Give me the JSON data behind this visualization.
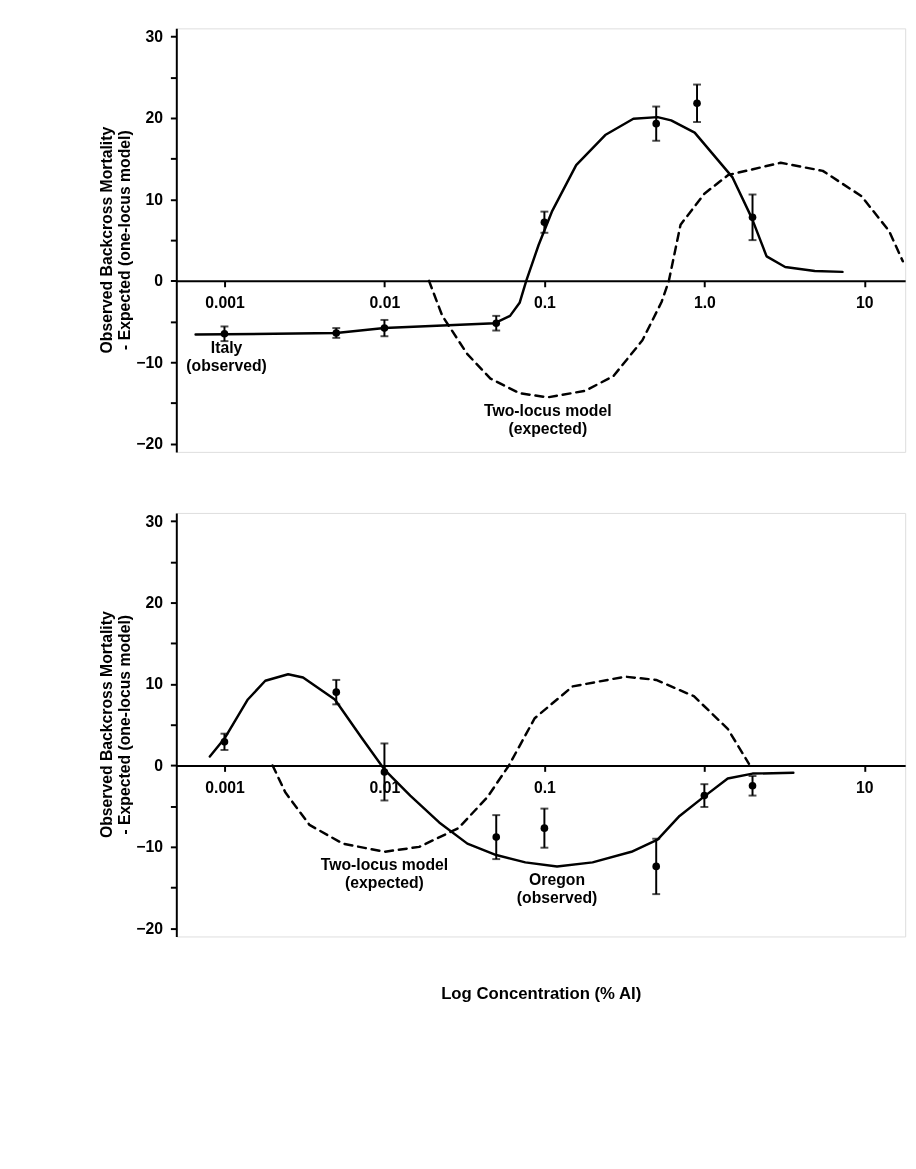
{
  "chart_data": [
    {
      "type": "line",
      "ylabel": "Observed Backcross Mortality\n- Expected (one-locus model)",
      "log": "x",
      "grid": false,
      "xlim": [
        0.0005,
        18
      ],
      "xticks": [
        0.001,
        0.01,
        0.1,
        {
          "value": 1,
          "label": "1.0"
        },
        10
      ],
      "ylim": [
        -21,
        31
      ],
      "yticks": [
        -20,
        {
          "value": -15,
          "label": null
        },
        -10,
        {
          "value": -5,
          "label": null
        },
        0,
        {
          "value": 5,
          "label": null
        },
        10,
        {
          "value": 15,
          "label": null
        },
        20,
        {
          "value": 25,
          "label": null
        },
        30
      ],
      "series": [
        {
          "name": "Italy\n(observed)",
          "color": "#000000",
          "line_style": "solid",
          "x": [
            0.00066,
            0.005,
            0.01,
            0.049,
            0.061,
            0.07,
            0.077,
            0.092,
            0.112,
            0.158,
            0.24,
            0.36,
            0.51,
            0.62,
            0.87,
            1.5,
            1.98,
            2.45,
            3.2,
            4.9,
            7.3
          ],
          "values": [
            -6.6,
            -6.4,
            -5.8,
            -5.2,
            -4.3,
            -2.7,
            0,
            4.4,
            8.6,
            14.2,
            17.9,
            19.9,
            20.1,
            19.7,
            18.2,
            12.7,
            7.7,
            3.0,
            1.7,
            1.2,
            1.1
          ]
        },
        {
          "name": "Two-locus model\n(expected)",
          "color": "#000000",
          "line_style": "dashed",
          "x": [
            0.019,
            0.023,
            0.033,
            0.046,
            0.07,
            0.105,
            0.18,
            0.27,
            0.41,
            0.54,
            0.6,
            0.71,
            1.0,
            1.41,
            3.0,
            5.5,
            9.6,
            14.3,
            17.4
          ],
          "values": [
            0,
            -4.3,
            -9.0,
            -12.0,
            -13.8,
            -14.3,
            -13.5,
            -11.7,
            -7.3,
            -2.6,
            0,
            6.9,
            10.7,
            13.0,
            14.5,
            13.5,
            10.4,
            6.1,
            2.4
          ]
        },
        {
          "type": "scatter",
          "color": "#000000",
          "marker": "circle",
          "x": [
            0.001,
            0.005,
            0.01,
            0.05,
            0.1,
            0.5,
            0.9,
            2
          ],
          "values": [
            -6.5,
            -6.4,
            -5.8,
            -5.2,
            7.2,
            19.3,
            21.8,
            7.8
          ],
          "errors": [
            0.9,
            0.6,
            1.0,
            0.9,
            1.3,
            2.1,
            2.3,
            2.8
          ]
        }
      ]
    },
    {
      "type": "line",
      "ylabel": "Observed Backcross Mortality\n- Expected (one-locus model)",
      "xlabel": "Log Concentration (% AI)",
      "log": "x",
      "grid": false,
      "xlim": [
        0.0005,
        18
      ],
      "xticks": [
        0.001,
        0.01,
        0.1,
        {
          "value": 1,
          "label": null
        },
        10
      ],
      "ylim": [
        -21,
        31
      ],
      "yticks": [
        -20,
        {
          "value": -15,
          "label": null
        },
        -10,
        {
          "value": -5,
          "label": null
        },
        0,
        {
          "value": 5,
          "label": null
        },
        10,
        {
          "value": 15,
          "label": null
        },
        20,
        {
          "value": 25,
          "label": null
        },
        30
      ],
      "series": [
        {
          "name": "Oregon\n(observed)",
          "color": "#000000",
          "line_style": "solid",
          "x": [
            0.00081,
            0.001,
            0.0014,
            0.0018,
            0.0025,
            0.0031,
            0.0049,
            0.0072,
            0.01,
            0.0145,
            0.022,
            0.033,
            0.05,
            0.076,
            0.12,
            0.2,
            0.35,
            0.51,
            0.7,
            1.0,
            1.4,
            2.0,
            3.6
          ],
          "values": [
            1.1,
            3.3,
            8.1,
            10.4,
            11.2,
            10.8,
            8.1,
            3.4,
            -0.5,
            -3.7,
            -7.0,
            -9.6,
            -11.0,
            -11.9,
            -12.4,
            -11.9,
            -10.6,
            -9.1,
            -6.2,
            -3.8,
            -1.6,
            -1.0,
            -0.9
          ]
        },
        {
          "name": "Two-locus model\n(expected)",
          "color": "#000000",
          "line_style": "dashed",
          "x": [
            0.002,
            0.0024,
            0.0034,
            0.0055,
            0.01,
            0.0165,
            0.029,
            0.044,
            0.06,
            0.087,
            0.15,
            0.32,
            0.5,
            0.86,
            1.4,
            1.9
          ],
          "values": [
            0,
            -3.3,
            -7.3,
            -9.6,
            -10.6,
            -10.0,
            -7.7,
            -3.9,
            0,
            5.8,
            9.7,
            10.9,
            10.5,
            8.5,
            4.5,
            0.2
          ]
        },
        {
          "type": "scatter",
          "color": "#000000",
          "marker": "circle",
          "x": [
            0.001,
            0.005,
            0.01,
            0.05,
            0.1,
            0.5,
            1.0,
            2
          ],
          "values": [
            2.9,
            9.0,
            -0.8,
            -8.8,
            -7.7,
            -12.4,
            -3.7,
            -2.5
          ],
          "errors": [
            1.0,
            1.5,
            3.5,
            2.7,
            2.4,
            3.4,
            1.4,
            1.2
          ]
        }
      ]
    }
  ]
}
